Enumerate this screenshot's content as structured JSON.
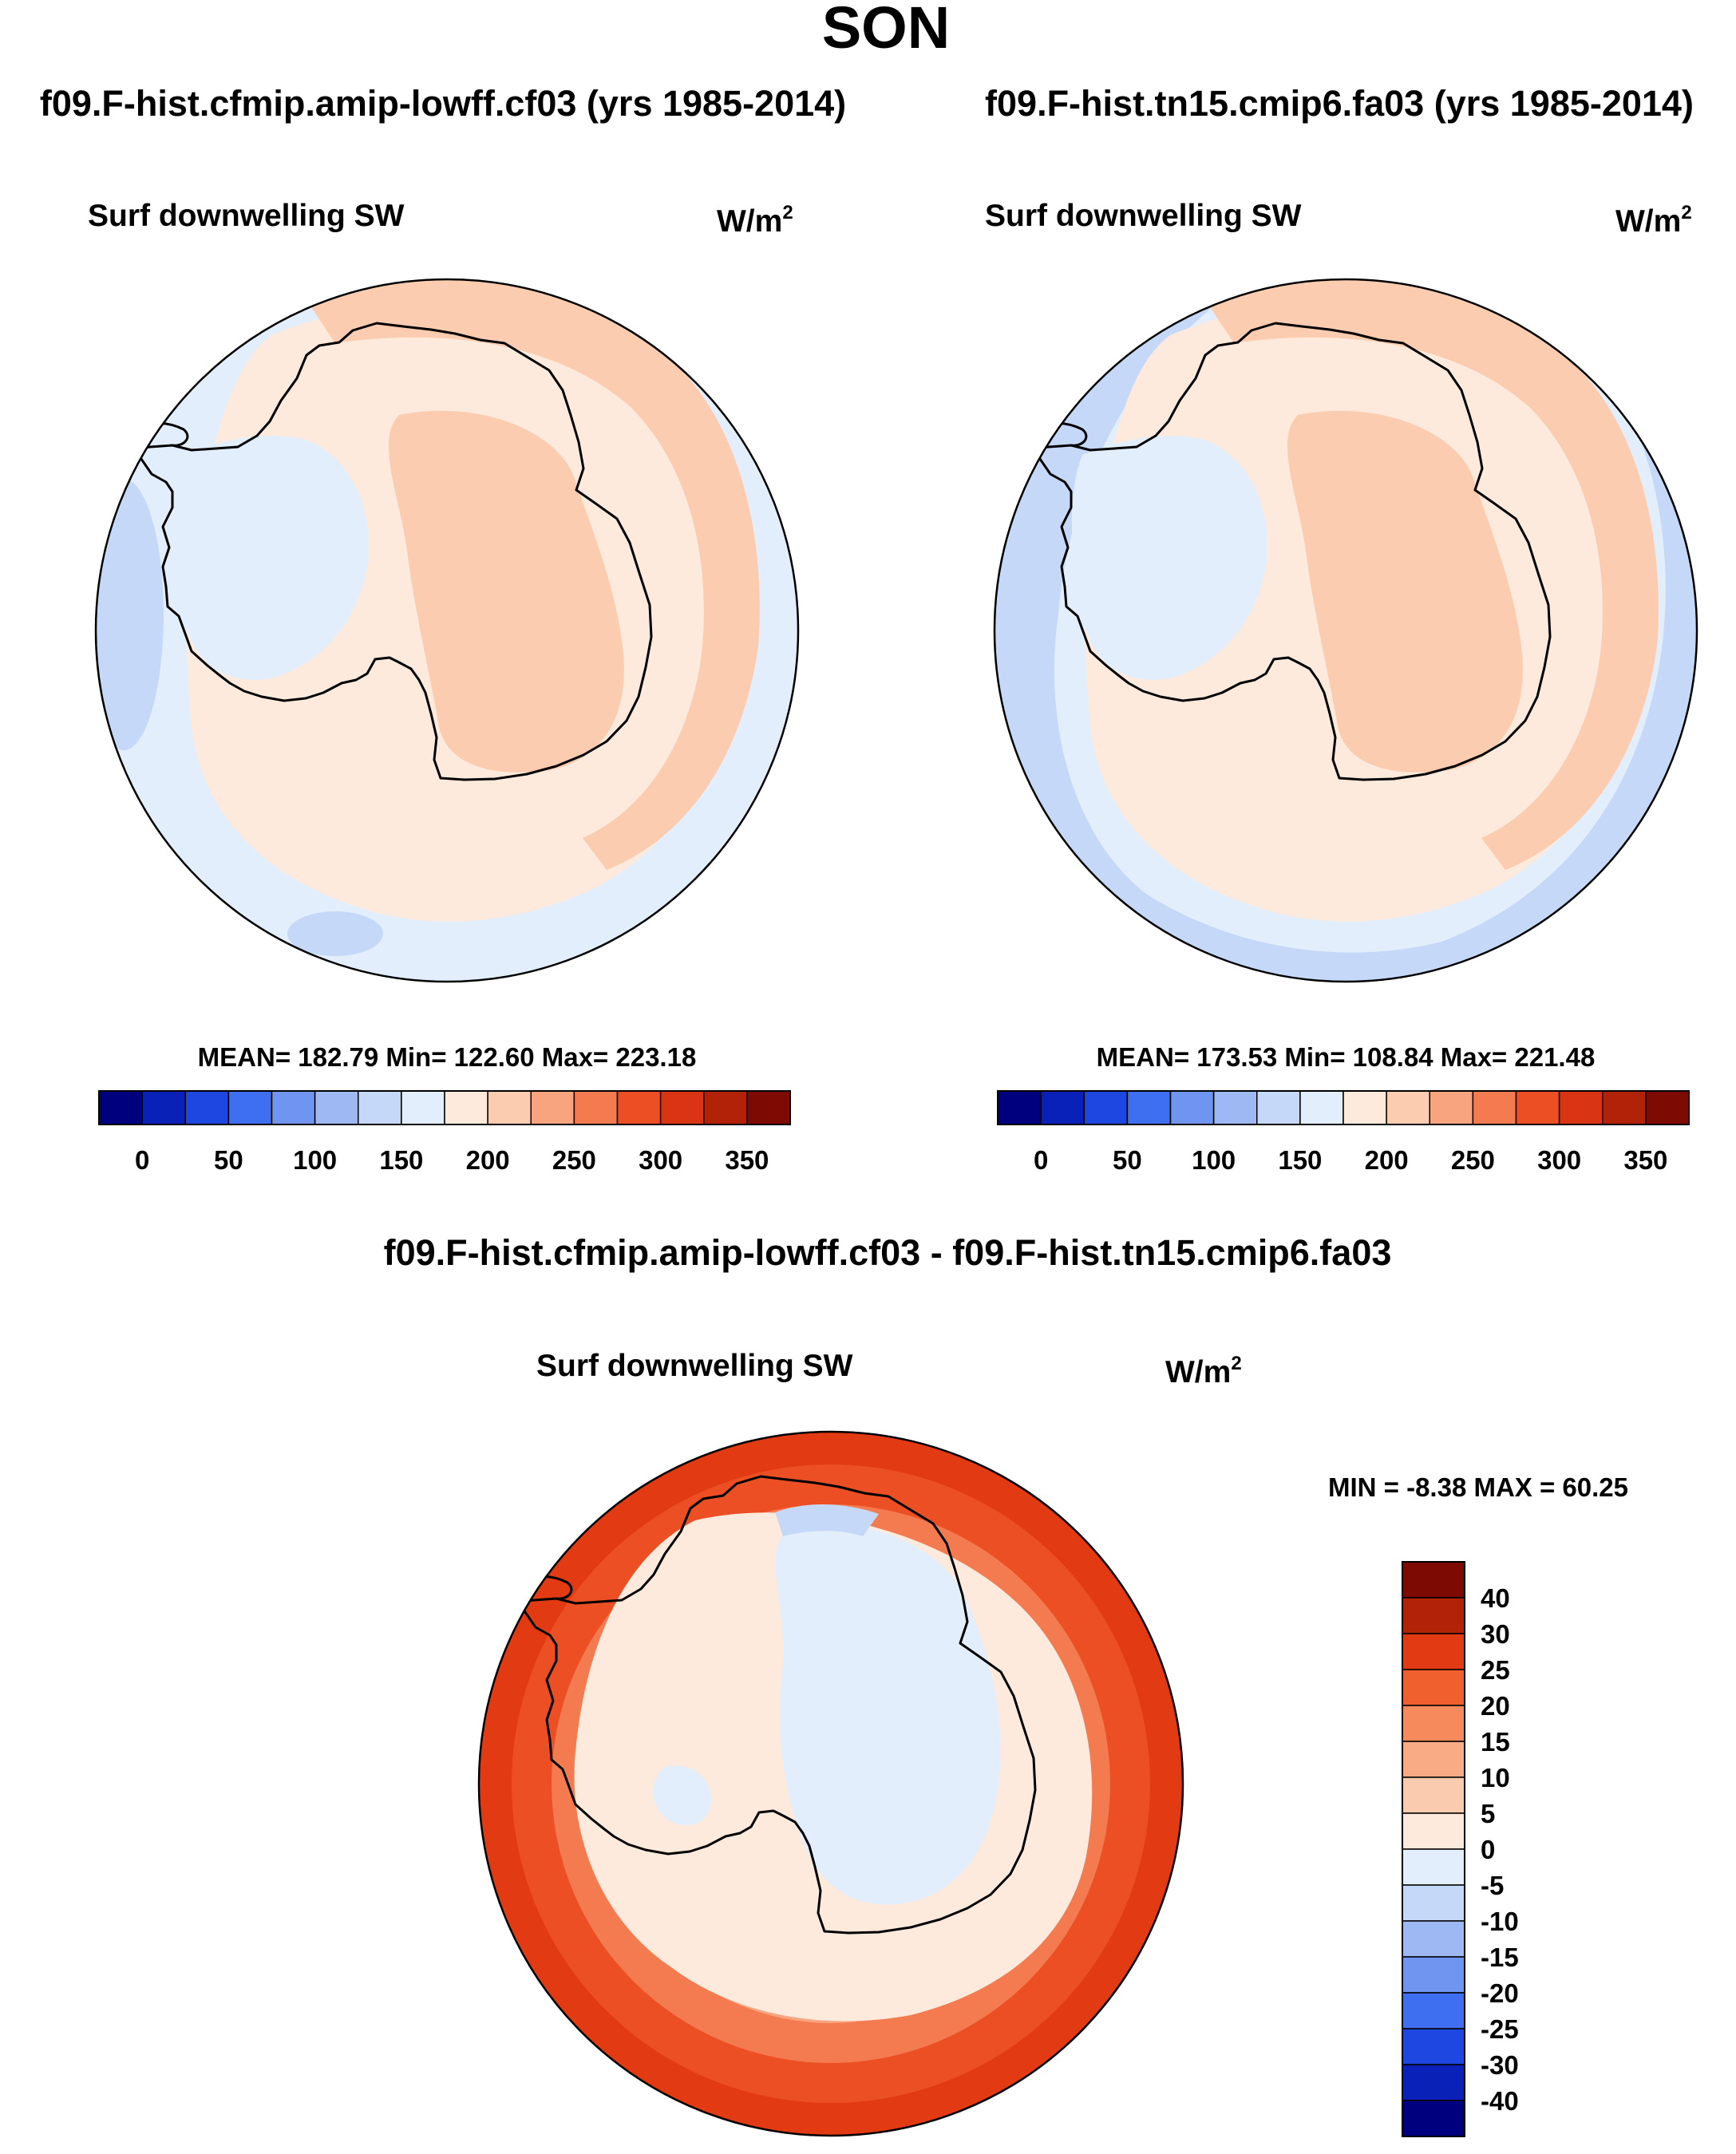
{
  "page": {
    "season": "SON"
  },
  "panels": {
    "left": {
      "case_title": "f09.F-hist.cfmip.amip-lowff.cf03 (yrs 1985-2014)",
      "variable": "Surf downwelling SW",
      "units_base": "W/m",
      "units_exp": "2",
      "stats": "MEAN= 182.79  Min= 122.60  Max= 223.18"
    },
    "right": {
      "case_title": "f09.F-hist.tn15.cmip6.fa03 (yrs 1985-2014)",
      "variable": "Surf downwelling SW",
      "units_base": "W/m",
      "units_exp": "2",
      "stats": "MEAN= 173.53  Min= 108.84  Max= 221.48"
    },
    "diff": {
      "case_title": "f09.F-hist.cfmip.amip-lowff.cf03 - f09.F-hist.tn15.cmip6.fa03",
      "variable": "Surf downwelling SW",
      "units_base": "W/m",
      "units_exp": "2",
      "stats": "MIN =  -8.38 MAX =  60.25"
    }
  },
  "colorbars": {
    "abs": {
      "colors": [
        "#00007f",
        "#0a21b8",
        "#1e46e0",
        "#3d6ff0",
        "#6f95f0",
        "#9db8f2",
        "#c6d8f7",
        "#e3eefc",
        "#fdeadc",
        "#fbccb0",
        "#f8a57f",
        "#f47a4f",
        "#ec4f24",
        "#d93414",
        "#b22208",
        "#7d0b04"
      ],
      "labels": [
        "0",
        "50",
        "100",
        "150",
        "200",
        "250",
        "300",
        "350"
      ]
    },
    "diff": {
      "colors": [
        "#7d0b04",
        "#b22208",
        "#e23a12",
        "#f0602e",
        "#f68a5c",
        "#f9ab85",
        "#fbcbb0",
        "#fdeadc",
        "#e3eefc",
        "#c6d8f7",
        "#9db8f2",
        "#6f95f0",
        "#3d6ff0",
        "#1e46e0",
        "#0a21b8",
        "#00007f"
      ],
      "labels": [
        "40",
        "30",
        "25",
        "20",
        "15",
        "10",
        "5",
        "0",
        "-5",
        "-10",
        "-15",
        "-20",
        "-25",
        "-30",
        "-40"
      ]
    }
  }
}
